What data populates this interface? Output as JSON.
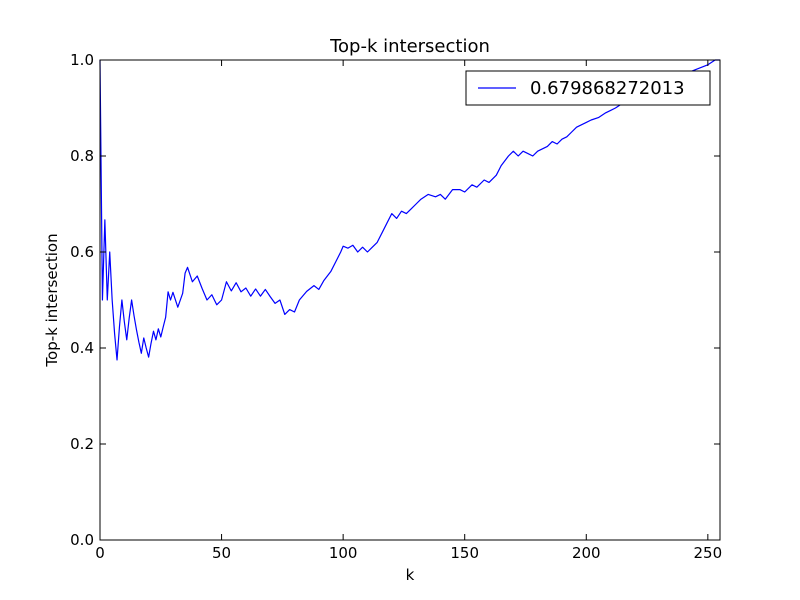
{
  "chart_data": {
    "type": "line",
    "title": "Top-k intersection",
    "xlabel": "k",
    "ylabel": "Top-k intersection",
    "xlim": [
      0,
      255
    ],
    "ylim": [
      0.0,
      1.0
    ],
    "x_ticks": [
      0,
      50,
      100,
      150,
      200,
      250
    ],
    "x_tick_labels": [
      "0",
      "50",
      "100",
      "150",
      "200",
      "250"
    ],
    "y_ticks": [
      0.0,
      0.2,
      0.4,
      0.6,
      0.8,
      1.0
    ],
    "y_tick_labels": [
      "0.0",
      "0.2",
      "0.4",
      "0.6",
      "0.8",
      "1.0"
    ],
    "grid": false,
    "legend_position": "top-right",
    "series": [
      {
        "name": "0.679868272013",
        "color": "#0000ff",
        "x": [
          0,
          1,
          2,
          3,
          4,
          5,
          6,
          7,
          8,
          9,
          10,
          11,
          12,
          13,
          14,
          15,
          16,
          17,
          18,
          19,
          20,
          21,
          22,
          23,
          24,
          25,
          26,
          27,
          28,
          29,
          30,
          32,
          34,
          35,
          36,
          38,
          40,
          42,
          44,
          46,
          48,
          50,
          52,
          54,
          56,
          58,
          60,
          62,
          64,
          66,
          68,
          70,
          72,
          74,
          76,
          78,
          80,
          82,
          85,
          88,
          90,
          92,
          95,
          97,
          99,
          100,
          102,
          104,
          106,
          108,
          110,
          112,
          114,
          116,
          118,
          120,
          122,
          124,
          126,
          128,
          130,
          132,
          135,
          138,
          140,
          142,
          145,
          148,
          150,
          153,
          155,
          158,
          160,
          163,
          165,
          168,
          170,
          172,
          174,
          176,
          178,
          180,
          182,
          184,
          186,
          188,
          190,
          192,
          194,
          196,
          198,
          200,
          202,
          205,
          208,
          210,
          212,
          215,
          218,
          220,
          225,
          230,
          235,
          240,
          245,
          250,
          253,
          255
        ],
        "y": [
          1.0,
          0.5,
          0.667,
          0.5,
          0.6,
          0.5,
          0.43,
          0.375,
          0.444,
          0.5,
          0.455,
          0.417,
          0.462,
          0.5,
          0.467,
          0.438,
          0.412,
          0.389,
          0.421,
          0.4,
          0.381,
          0.41,
          0.435,
          0.417,
          0.44,
          0.423,
          0.444,
          0.464,
          0.517,
          0.5,
          0.516,
          0.485,
          0.514,
          0.556,
          0.568,
          0.538,
          0.55,
          0.524,
          0.5,
          0.511,
          0.49,
          0.5,
          0.538,
          0.519,
          0.536,
          0.517,
          0.525,
          0.508,
          0.523,
          0.508,
          0.522,
          0.507,
          0.493,
          0.5,
          0.47,
          0.48,
          0.475,
          0.5,
          0.518,
          0.53,
          0.522,
          0.54,
          0.56,
          0.58,
          0.6,
          0.612,
          0.608,
          0.614,
          0.6,
          0.61,
          0.6,
          0.61,
          0.62,
          0.64,
          0.66,
          0.68,
          0.67,
          0.685,
          0.68,
          0.69,
          0.7,
          0.71,
          0.72,
          0.715,
          0.72,
          0.71,
          0.73,
          0.73,
          0.725,
          0.74,
          0.735,
          0.75,
          0.745,
          0.76,
          0.78,
          0.8,
          0.81,
          0.8,
          0.81,
          0.805,
          0.8,
          0.81,
          0.815,
          0.82,
          0.83,
          0.825,
          0.835,
          0.84,
          0.85,
          0.86,
          0.865,
          0.87,
          0.875,
          0.88,
          0.89,
          0.895,
          0.9,
          0.91,
          0.92,
          0.93,
          0.94,
          0.95,
          0.96,
          0.97,
          0.98,
          0.99,
          1.0,
          1.0
        ]
      }
    ]
  }
}
